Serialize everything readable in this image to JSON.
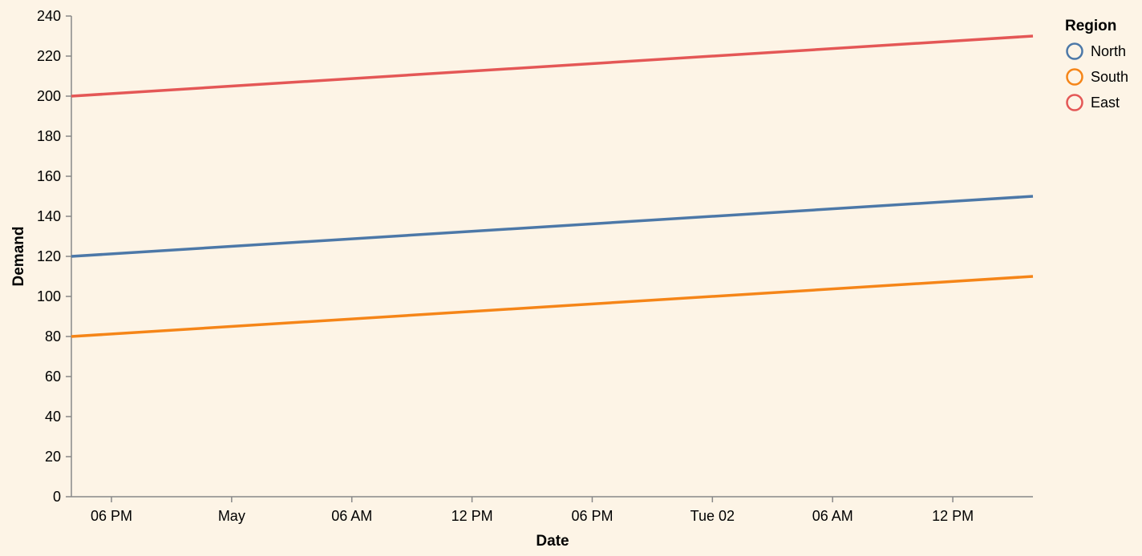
{
  "chart_data": {
    "type": "line",
    "xlabel": "Date",
    "ylabel": "Demand",
    "ylim": [
      0,
      240
    ],
    "y_ticks": [
      0,
      20,
      40,
      60,
      80,
      100,
      120,
      140,
      160,
      180,
      200,
      220,
      240
    ],
    "x_tick_labels": [
      "06 PM",
      "May",
      "06 AM",
      "12 PM",
      "06 PM",
      "Tue 02",
      "06 AM",
      "12 PM"
    ],
    "x": [
      "2024-04-30",
      "2024-05-02"
    ],
    "series": [
      {
        "name": "North",
        "color": "#4c78a8",
        "values": [
          120,
          150
        ]
      },
      {
        "name": "South",
        "color": "#f58518",
        "values": [
          80,
          110
        ]
      },
      {
        "name": "East",
        "color": "#e45756",
        "values": [
          200,
          230
        ]
      }
    ],
    "legend": {
      "title": "Region",
      "position": "top-right"
    },
    "grid": false
  }
}
